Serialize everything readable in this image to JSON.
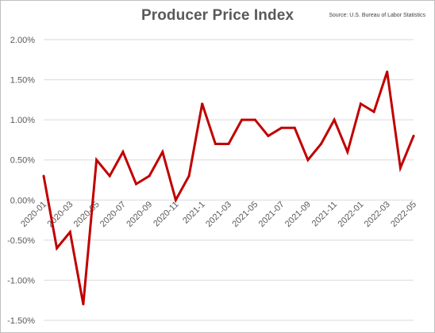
{
  "chart_data": {
    "type": "line",
    "title": "Producer Price Index",
    "source": "Source: U.S. Bureau of Labor Statistics",
    "xlabel": "",
    "ylabel": "",
    "ylim": [
      -1.5,
      2.0
    ],
    "y_ticks": [
      2.0,
      1.5,
      1.0,
      0.5,
      0.0,
      -0.5,
      -1.0,
      -1.5
    ],
    "y_tick_labels": [
      "2.00%",
      "1.50%",
      "1.00%",
      "0.50%",
      "0.00%",
      "-0.50%",
      "-1.00%",
      "-1.50%"
    ],
    "grid": true,
    "line_color": "#c00000",
    "x": [
      "2020-01",
      "2020-02",
      "2020-03",
      "2020-04",
      "2020-05",
      "2020-06",
      "2020-07",
      "2020-08",
      "2020-09",
      "2020-10",
      "2020-11",
      "2020-12",
      "2021-01",
      "2021-02",
      "2021-03",
      "2021-04",
      "2021-05",
      "2021-06",
      "2021-07",
      "2021-08",
      "2021-09",
      "2021-10",
      "2021-11",
      "2021-12",
      "2022-01",
      "2022-02",
      "2022-03",
      "2022-04",
      "2022-05"
    ],
    "x_tick_labels": [
      "2020-01",
      "",
      "2020-03",
      "",
      "2020-05",
      "",
      "2020-07",
      "",
      "2020-09",
      "",
      "2020-11",
      "",
      "2021-1",
      "",
      "2021-03",
      "",
      "2021-05",
      "",
      "2021-07",
      "",
      "2021-09",
      "",
      "2021-11",
      "",
      "2022-01",
      "",
      "2022-03",
      "",
      "2022-05"
    ],
    "series": [
      {
        "values": [
          0.3,
          -0.6,
          -0.4,
          -1.3,
          0.5,
          0.3,
          0.6,
          0.2,
          0.3,
          0.6,
          0.0,
          0.3,
          1.2,
          0.7,
          0.7,
          1.0,
          1.0,
          0.8,
          0.9,
          0.9,
          0.5,
          0.7,
          1.0,
          0.6,
          1.2,
          1.1,
          1.6,
          0.4,
          0.8
        ]
      }
    ]
  }
}
